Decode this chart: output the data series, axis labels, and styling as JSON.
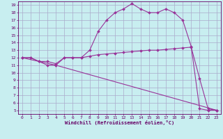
{
  "xlabel": "Windchill (Refroidissement éolien,°C)",
  "bg_color": "#c8eef0",
  "grid_color": "#aaaacc",
  "line_color": "#993399",
  "spine_color": "#660066",
  "x_ticks": [
    0,
    1,
    2,
    3,
    4,
    5,
    6,
    7,
    8,
    9,
    10,
    11,
    12,
    13,
    14,
    15,
    16,
    17,
    18,
    19,
    20,
    21,
    22,
    23
  ],
  "y_ticks": [
    5,
    6,
    7,
    8,
    9,
    10,
    11,
    12,
    13,
    14,
    15,
    16,
    17,
    18,
    19
  ],
  "line1_x": [
    0,
    1,
    2,
    3,
    4,
    5,
    6,
    7,
    8,
    9,
    10,
    11,
    12,
    13,
    14,
    15,
    16,
    17,
    18,
    19,
    20,
    21,
    22,
    23
  ],
  "line1_y": [
    12,
    12,
    11.5,
    11,
    11,
    12,
    12,
    12,
    13,
    15.5,
    17,
    18,
    18.5,
    19.2,
    18.5,
    18,
    18,
    18.5,
    18,
    17,
    13.5,
    5.2,
    5,
    5
  ],
  "line2_x": [
    0,
    1,
    2,
    3,
    4,
    5,
    6,
    7,
    8,
    9,
    10,
    11,
    12,
    13,
    14,
    15,
    16,
    17,
    18,
    19,
    20,
    21,
    22,
    23
  ],
  "line2_y": [
    12,
    12,
    11.5,
    11.5,
    11.2,
    12,
    12,
    12,
    12.2,
    12.4,
    12.5,
    12.6,
    12.7,
    12.8,
    12.9,
    13.0,
    13.0,
    13.1,
    13.2,
    13.3,
    13.4,
    9.2,
    5.2,
    5
  ],
  "line3_x": [
    0,
    4,
    23
  ],
  "line3_y": [
    12,
    11,
    5
  ],
  "xlim": [
    -0.5,
    23.5
  ],
  "ylim": [
    4.5,
    19.5
  ]
}
